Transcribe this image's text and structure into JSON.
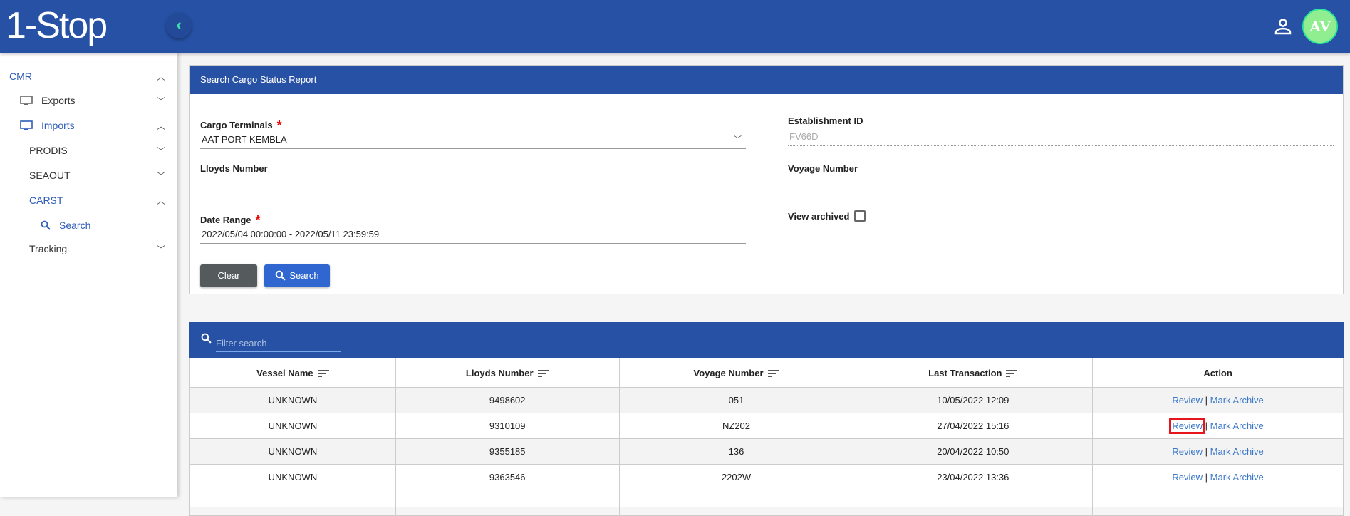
{
  "header": {
    "logo": "1-Stop",
    "avatar_initials": "AV",
    "brand_color": "#2751a5"
  },
  "sidebar": {
    "items": [
      {
        "label": "CMR",
        "expanded": true
      },
      {
        "label": "Exports",
        "expanded": false
      },
      {
        "label": "Imports",
        "expanded": true
      },
      {
        "label": "PRODIS",
        "expanded": false
      },
      {
        "label": "SEAOUT",
        "expanded": false
      },
      {
        "label": "CARST",
        "expanded": true
      },
      {
        "label": "Search"
      },
      {
        "label": "Tracking",
        "expanded": false
      }
    ]
  },
  "search_panel": {
    "title": "Search Cargo Status Report",
    "cargo_terminals_label": "Cargo Terminals",
    "cargo_terminals_value": "AAT PORT KEMBLA",
    "establishment_label": "Establishment ID",
    "establishment_value": "FV66D",
    "lloyds_label": "Lloyds Number",
    "lloyds_value": "",
    "voyage_label": "Voyage Number",
    "voyage_value": "",
    "date_label": "Date Range",
    "date_value": "2022/05/04 00:00:00 - 2022/05/11 23:59:59",
    "archived_label": "View archived",
    "archived_checked": false,
    "required_mark": "*",
    "clear_label": "Clear",
    "search_label": "Search"
  },
  "results": {
    "filter_placeholder": "Filter search",
    "columns": [
      "Vessel Name",
      "Lloyds Number",
      "Voyage Number",
      "Last Transaction",
      "Action"
    ],
    "rows": [
      {
        "vessel": "UNKNOWN",
        "lloyds": "9498602",
        "voyage": "051",
        "last": "10/05/2022 12:09"
      },
      {
        "vessel": "UNKNOWN",
        "lloyds": "9310109",
        "voyage": "NZ202",
        "last": "27/04/2022 15:16"
      },
      {
        "vessel": "UNKNOWN",
        "lloyds": "9355185",
        "voyage": "136",
        "last": "20/04/2022 10:50"
      },
      {
        "vessel": "UNKNOWN",
        "lloyds": "9363546",
        "voyage": "2202W",
        "last": "23/04/2022 13:36"
      }
    ],
    "review_label": "Review",
    "separator": "|",
    "archive_label": "Mark Archive"
  }
}
